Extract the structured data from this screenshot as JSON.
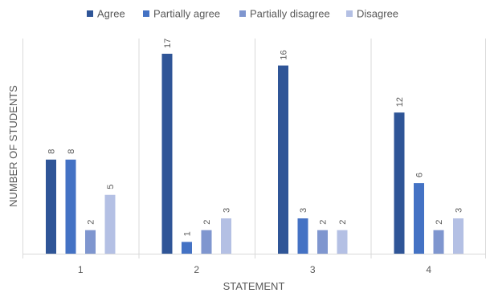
{
  "chart_data": {
    "type": "bar",
    "title": "",
    "xlabel": "STATEMENT",
    "ylabel": "NUMBER OF STUDENTS",
    "categories": [
      "1",
      "2",
      "3",
      "4"
    ],
    "series": [
      {
        "name": "Agree",
        "color": "#2F5597",
        "values": [
          8,
          17,
          16,
          12
        ]
      },
      {
        "name": "Partially agree",
        "color": "#4472C4",
        "values": [
          8,
          1,
          3,
          6
        ]
      },
      {
        "name": "Partially disagree",
        "color": "#7F96CF",
        "values": [
          2,
          2,
          2,
          2
        ]
      },
      {
        "name": "Disagree",
        "color": "#B4C0E4",
        "values": [
          5,
          3,
          2,
          3
        ]
      }
    ],
    "ylim": [
      0,
      18
    ],
    "legend_position": "top",
    "grid": false,
    "data_labels": "rotated-vertical"
  }
}
